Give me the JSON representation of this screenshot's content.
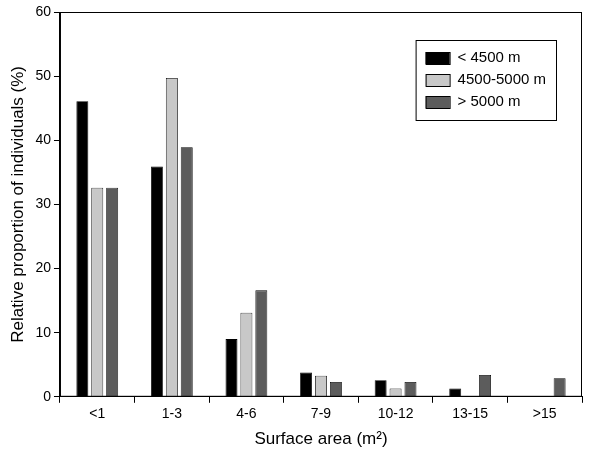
{
  "chart_data": {
    "type": "bar",
    "x_label": "Surface area (m²)",
    "y_label": "Relative proportion of individuals (%)",
    "categories": [
      "<1",
      "1-3",
      "4-6",
      "7-9",
      "10-12",
      "13-15",
      ">15"
    ],
    "series": [
      {
        "name": "< 4500 m",
        "color": "#000000",
        "values": [
          46.1,
          35.9,
          9.0,
          3.8,
          2.6,
          1.3,
          0
        ]
      },
      {
        "name": "4500-5000 m",
        "color": "#c8c8c8",
        "values": [
          32.6,
          49.7,
          13.1,
          3.3,
          1.3,
          0,
          0
        ]
      },
      {
        "name": "> 5000 m",
        "color": "#5c5c5c",
        "values": [
          32.6,
          38.9,
          16.6,
          2.3,
          2.3,
          3.4,
          2.9
        ]
      }
    ],
    "ylim": [
      0,
      60
    ],
    "yticks": [
      0,
      10,
      20,
      30,
      40,
      50,
      60
    ],
    "grid": false,
    "legend": "top-right"
  }
}
